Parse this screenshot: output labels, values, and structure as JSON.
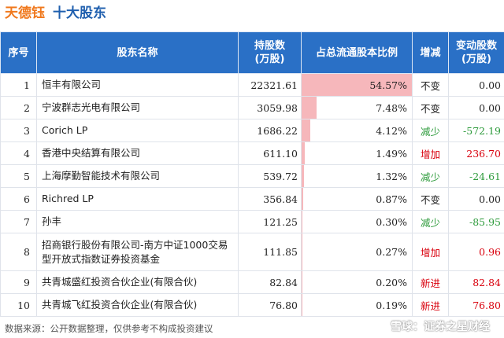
{
  "title": {
    "company": "天德钰",
    "subtitle": "十大股东"
  },
  "columns": [
    "序号",
    "股东名称",
    "持股数\n(万股)",
    "占总流通股本比例",
    "增减",
    "变动股数\n(万股)"
  ],
  "colors": {
    "header_bg": "#2a70c6",
    "company": "#f0791e",
    "subtitle": "#1f5fae",
    "bar": "#f6b7bb",
    "up": "#d9000d",
    "down": "#2e9b3c",
    "neutral": "#222222"
  },
  "rows": [
    {
      "idx": "1",
      "name": "恒丰有限公司",
      "shares": "22321.61",
      "ratio": "54.57%",
      "ratio_value": 54.57,
      "change": "不变",
      "trend": "neutral",
      "delta": "0.00"
    },
    {
      "idx": "2",
      "name": "宁波群志光电有限公司",
      "shares": "3059.98",
      "ratio": "7.48%",
      "ratio_value": 7.48,
      "change": "不变",
      "trend": "neutral",
      "delta": "0.00"
    },
    {
      "idx": "3",
      "name": "Corich LP",
      "shares": "1686.22",
      "ratio": "4.12%",
      "ratio_value": 4.12,
      "change": "减少",
      "trend": "down",
      "delta": "-572.19"
    },
    {
      "idx": "4",
      "name": "香港中央结算有限公司",
      "shares": "611.10",
      "ratio": "1.49%",
      "ratio_value": 1.49,
      "change": "增加",
      "trend": "up",
      "delta": "236.70"
    },
    {
      "idx": "5",
      "name": "上海摩勤智能技术有限公司",
      "shares": "539.72",
      "ratio": "1.32%",
      "ratio_value": 1.32,
      "change": "减少",
      "trend": "down",
      "delta": "-24.61"
    },
    {
      "idx": "6",
      "name": "Richred LP",
      "shares": "356.84",
      "ratio": "0.87%",
      "ratio_value": 0.87,
      "change": "不变",
      "trend": "neutral",
      "delta": "0.00"
    },
    {
      "idx": "7",
      "name": "孙丰",
      "shares": "121.25",
      "ratio": "0.30%",
      "ratio_value": 0.3,
      "change": "减少",
      "trend": "down",
      "delta": "-85.95"
    },
    {
      "idx": "8",
      "name": "招商银行股份有限公司-南方中证1000交易型开放式指数证券投资基金",
      "shares": "111.85",
      "ratio": "0.27%",
      "ratio_value": 0.27,
      "change": "增加",
      "trend": "up",
      "delta": "0.96"
    },
    {
      "idx": "9",
      "name": "共青城盛红投资合伙企业(有限合伙)",
      "shares": "82.84",
      "ratio": "0.20%",
      "ratio_value": 0.2,
      "change": "新进",
      "trend": "up",
      "delta": "82.84"
    },
    {
      "idx": "10",
      "name": "共青城飞红投资合伙企业(有限合伙)",
      "shares": "76.80",
      "ratio": "0.19%",
      "ratio_value": 0.19,
      "change": "新进",
      "trend": "up",
      "delta": "76.80"
    }
  ],
  "footer": "数据来源：公开数据整理，仅供参考不构成投资建议",
  "watermark": "雪球：证券之星财经"
}
